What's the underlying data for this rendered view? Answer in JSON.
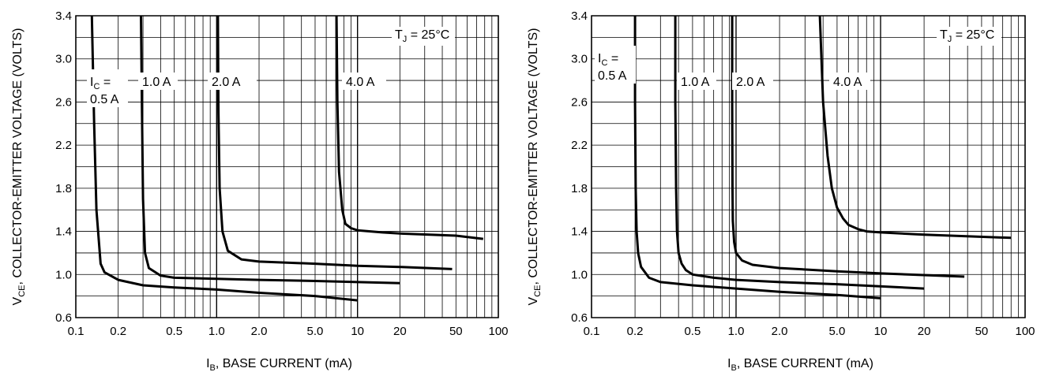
{
  "chart_data": [
    {
      "type": "line",
      "x_scale": "log",
      "xlim": [
        0.1,
        100
      ],
      "ylim": [
        0.6,
        3.4
      ],
      "grid": true,
      "x_ticks": [
        "0.1",
        "0.2",
        "0.5",
        "1.0",
        "2.0",
        "5.0",
        "10",
        "20",
        "50",
        "100"
      ],
      "x_tick_values": [
        0.1,
        0.2,
        0.5,
        1,
        2,
        5,
        10,
        20,
        50,
        100
      ],
      "y_ticks": [
        "0.6",
        "1.0",
        "1.4",
        "1.8",
        "2.2",
        "2.6",
        "3.0",
        "3.4"
      ],
      "y_tick_values": [
        0.6,
        1.0,
        1.4,
        1.8,
        2.2,
        2.6,
        3.0,
        3.4
      ],
      "xlabel": {
        "main": "I",
        "sub": "B",
        "rest": ", BASE CURRENT (mA)"
      },
      "ylabel": {
        "main": "V",
        "sub": "CE",
        "rest": ", COLLECTOR-EMITTER VOLTAGE (VOLTS)"
      },
      "annotation": {
        "main": "T",
        "sub": "J",
        "rest": " = 25°C"
      },
      "series_labels": [
        {
          "lines": [
            {
              "main": "I",
              "sub": "C",
              "rest": " ="
            },
            {
              "main": "0.5 A",
              "sub": "",
              "rest": ""
            }
          ]
        },
        {
          "lines": [
            {
              "main": "1.0 A",
              "sub": "",
              "rest": ""
            }
          ]
        },
        {
          "lines": [
            {
              "main": "2.0 A",
              "sub": "",
              "rest": ""
            }
          ]
        },
        {
          "lines": [
            {
              "main": "4.0 A",
              "sub": "",
              "rest": ""
            }
          ]
        }
      ],
      "series": [
        {
          "x": [
            0.13,
            0.135,
            0.14,
            0.15,
            0.16,
            0.2,
            0.3,
            0.5,
            1,
            2,
            5,
            10
          ],
          "y": [
            3.4,
            2.4,
            1.6,
            1.1,
            1.02,
            0.95,
            0.9,
            0.88,
            0.86,
            0.83,
            0.8,
            0.76
          ]
        },
        {
          "x": [
            0.29,
            0.295,
            0.3,
            0.31,
            0.33,
            0.4,
            0.5,
            1,
            2,
            5,
            10,
            20
          ],
          "y": [
            3.4,
            2.5,
            1.7,
            1.2,
            1.06,
            0.99,
            0.97,
            0.96,
            0.95,
            0.94,
            0.93,
            0.92
          ]
        },
        {
          "x": [
            1.02,
            1.03,
            1.05,
            1.1,
            1.2,
            1.5,
            2,
            5,
            10,
            20,
            47
          ],
          "y": [
            3.4,
            2.5,
            1.8,
            1.4,
            1.22,
            1.14,
            1.12,
            1.1,
            1.08,
            1.07,
            1.05
          ]
        },
        {
          "x": [
            7.1,
            7.2,
            7.4,
            7.8,
            8.2,
            9,
            10,
            15,
            20,
            50,
            78
          ],
          "y": [
            3.4,
            2.6,
            1.95,
            1.6,
            1.47,
            1.43,
            1.41,
            1.39,
            1.38,
            1.36,
            1.33
          ]
        }
      ]
    },
    {
      "type": "line",
      "x_scale": "log",
      "xlim": [
        0.1,
        100
      ],
      "ylim": [
        0.6,
        3.4
      ],
      "grid": true,
      "x_ticks": [
        "0.1",
        "0.2",
        "0.5",
        "1.0",
        "2.0",
        "5.0",
        "10",
        "20",
        "50",
        "100"
      ],
      "x_tick_values": [
        0.1,
        0.2,
        0.5,
        1,
        2,
        5,
        10,
        20,
        50,
        100
      ],
      "y_ticks": [
        "0.6",
        "1.0",
        "1.4",
        "1.8",
        "2.2",
        "2.6",
        "3.0",
        "3.4"
      ],
      "y_tick_values": [
        0.6,
        1.0,
        1.4,
        1.8,
        2.2,
        2.6,
        3.0,
        3.4
      ],
      "xlabel": {
        "main": "I",
        "sub": "B",
        "rest": ", BASE CURRENT (mA)"
      },
      "ylabel": {
        "main": "V",
        "sub": "CE",
        "rest": ", COLLECTOR-EMITTER VOLTAGE (VOLTS)"
      },
      "annotation": {
        "main": "T",
        "sub": "J",
        "rest": " = 25°C"
      },
      "series_labels": [
        {
          "lines": [
            {
              "main": "I",
              "sub": "C",
              "rest": " ="
            },
            {
              "main": "0.5 A",
              "sub": "",
              "rest": ""
            }
          ]
        },
        {
          "lines": [
            {
              "main": "1.0 A",
              "sub": "",
              "rest": ""
            }
          ]
        },
        {
          "lines": [
            {
              "main": "2.0 A",
              "sub": "",
              "rest": ""
            }
          ]
        },
        {
          "lines": [
            {
              "main": "4.0 A",
              "sub": "",
              "rest": ""
            }
          ]
        }
      ],
      "series": [
        {
          "x": [
            0.2,
            0.2,
            0.202,
            0.205,
            0.21,
            0.22,
            0.25,
            0.3,
            0.5,
            1,
            2,
            5,
            10
          ],
          "y": [
            3.4,
            2.6,
            1.8,
            1.4,
            1.2,
            1.07,
            0.97,
            0.93,
            0.9,
            0.87,
            0.84,
            0.81,
            0.78
          ]
        },
        {
          "x": [
            0.38,
            0.38,
            0.385,
            0.39,
            0.4,
            0.42,
            0.45,
            0.5,
            0.7,
            1,
            2,
            5,
            20
          ],
          "y": [
            3.4,
            2.6,
            1.8,
            1.4,
            1.2,
            1.1,
            1.04,
            1.0,
            0.97,
            0.95,
            0.93,
            0.91,
            0.87
          ]
        },
        {
          "x": [
            0.94,
            0.94,
            0.945,
            0.95,
            0.97,
            1.0,
            1.1,
            1.3,
            2,
            5,
            10,
            38
          ],
          "y": [
            3.4,
            2.6,
            1.8,
            1.5,
            1.3,
            1.2,
            1.13,
            1.09,
            1.06,
            1.03,
            1.01,
            0.98
          ]
        },
        {
          "x": [
            3.8,
            4.0,
            4.3,
            4.6,
            5,
            5.5,
            6,
            7,
            8,
            10,
            20,
            80
          ],
          "y": [
            3.4,
            2.6,
            2.1,
            1.8,
            1.62,
            1.52,
            1.46,
            1.42,
            1.4,
            1.39,
            1.37,
            1.34
          ]
        }
      ]
    }
  ]
}
